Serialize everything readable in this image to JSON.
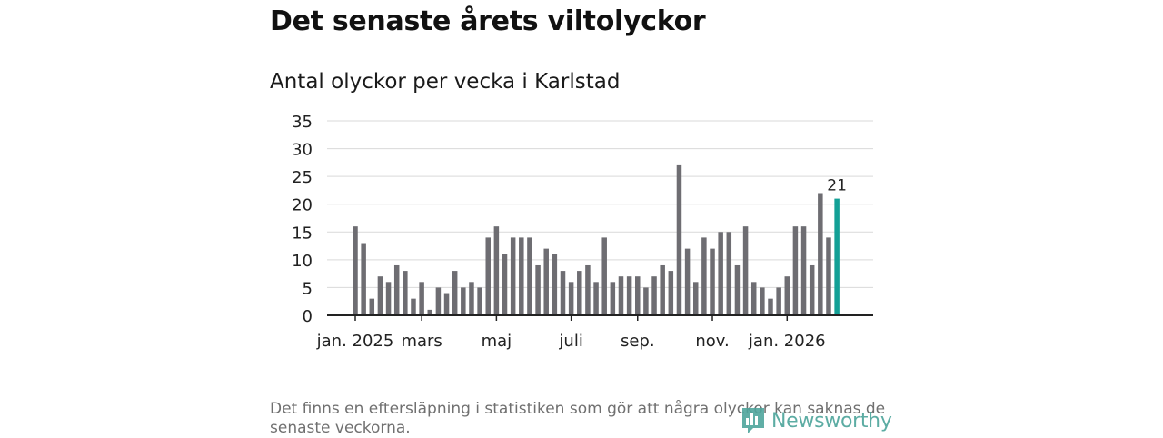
{
  "title": "Det senaste årets viltolyckor",
  "subtitle": "Antal olyckor per vecka i Karlstad",
  "note": "Det finns en eftersläpning i statistiken som gör att några olyckor kan saknas de senaste veckorna.",
  "brand": "Newsworthy",
  "colors": {
    "bar": "#6e6d72",
    "highlight": "#13a096",
    "grid": "#d9d9d9",
    "axis": "#222222",
    "brand": "#4fa59c"
  },
  "chart_data": {
    "type": "bar",
    "title": "Antal olyckor per vecka i Karlstad",
    "xlabel": "",
    "ylabel": "",
    "ylim": [
      0,
      35
    ],
    "yticks": [
      0,
      5,
      10,
      15,
      20,
      25,
      30,
      35
    ],
    "grid": true,
    "values": [
      16,
      13,
      3,
      7,
      6,
      9,
      8,
      3,
      6,
      1,
      5,
      4,
      8,
      5,
      6,
      5,
      14,
      16,
      11,
      14,
      14,
      14,
      9,
      12,
      11,
      8,
      6,
      8,
      9,
      6,
      14,
      6,
      7,
      7,
      7,
      5,
      7,
      9,
      8,
      27,
      12,
      6,
      14,
      12,
      15,
      15,
      9,
      16,
      6,
      5,
      3,
      5,
      7,
      16,
      16,
      9,
      22,
      14,
      21
    ],
    "highlight_index": 58,
    "highlight_label": "21",
    "xticks": [
      {
        "label": "jan. 2025",
        "index": 0
      },
      {
        "label": "mars",
        "index": 8
      },
      {
        "label": "maj",
        "index": 17
      },
      {
        "label": "juli",
        "index": 26
      },
      {
        "label": "sep.",
        "index": 34
      },
      {
        "label": "nov.",
        "index": 43
      },
      {
        "label": "jan. 2026",
        "index": 52
      }
    ]
  }
}
